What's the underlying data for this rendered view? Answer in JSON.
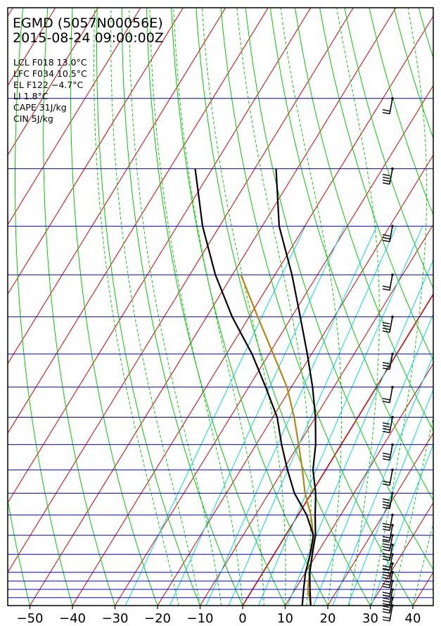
{
  "chart_data": {
    "type": "line",
    "subtype": "skew-T log-P sounding",
    "title": "EGMD (5057N00056E)",
    "subtitle": "2015-08-24 09:00:00Z",
    "indices": [
      "LCL F018 13.0°C",
      "LFC F034 10.5°C",
      "EL F122 −4.7°C",
      "LI 1.8°C",
      "CAPE 31J/kg",
      "CIN 5J/kg"
    ],
    "x_axis": {
      "ticks": [
        -50,
        -40,
        -30,
        -20,
        -10,
        0,
        10,
        20,
        30,
        40
      ],
      "tick_labels": [
        "−50",
        "−40",
        "−30",
        "−20",
        "−10",
        "0",
        "10",
        "20",
        "30",
        "40"
      ]
    },
    "pressure_levels": [
      1000,
      975,
      950,
      925,
      900,
      850,
      800,
      750,
      700,
      650,
      600,
      550,
      500,
      450,
      400,
      350,
      300,
      250,
      200,
      150
    ],
    "y_axis_labels_shown": false,
    "temperature": {
      "pressure": [
        1000,
        950,
        900,
        850,
        800,
        750,
        700,
        650,
        600,
        550,
        500,
        450,
        400,
        350,
        300,
        250
      ],
      "value": [
        16,
        13.5,
        11,
        9,
        7,
        4,
        1,
        -3,
        -6,
        -10,
        -15,
        -21,
        -28,
        -36,
        -46,
        -55
      ]
    },
    "dewpoint": {
      "pressure": [
        1000,
        950,
        900,
        850,
        800,
        750,
        700,
        650,
        600,
        550,
        500,
        450,
        400,
        350,
        300,
        250
      ],
      "value": [
        14,
        12,
        10,
        8.5,
        6.5,
        2,
        -4,
        -9,
        -14,
        -19,
        -26,
        -34,
        -44,
        -54,
        -64,
        -74
      ]
    },
    "parcel": {
      "pressure": [
        1000,
        950,
        900,
        850,
        800,
        750,
        700,
        650,
        600,
        550,
        500,
        450,
        400,
        350
      ],
      "value": [
        16,
        13,
        11,
        9,
        6.5,
        3,
        -1.5,
        -5.5,
        -10,
        -15,
        -21,
        -29,
        -38,
        -48
      ]
    },
    "wind_barbs_shown": true,
    "series": [
      {
        "name": "temperature",
        "color": "#000000"
      },
      {
        "name": "dewpoint",
        "color": "#000000"
      },
      {
        "name": "parcel",
        "color": "#b8860b"
      }
    ],
    "colors": {
      "isotherm": "#d40000",
      "zero_isotherm": "#d40000",
      "dry_adiabat": "#00cc00",
      "moist_adiabat": "#00cc00",
      "mixing_ratio": "#00dddd",
      "isobar": "#0000cc",
      "frame": "#000000"
    }
  }
}
